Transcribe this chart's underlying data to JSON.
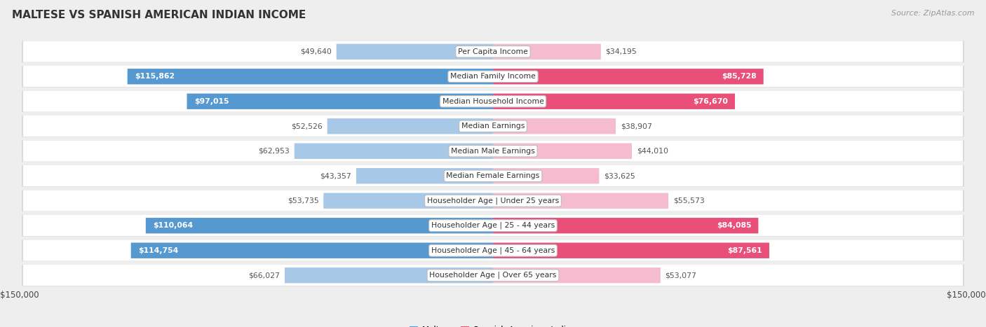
{
  "title": "MALTESE VS SPANISH AMERICAN INDIAN INCOME",
  "source": "Source: ZipAtlas.com",
  "categories": [
    "Per Capita Income",
    "Median Family Income",
    "Median Household Income",
    "Median Earnings",
    "Median Male Earnings",
    "Median Female Earnings",
    "Householder Age | Under 25 years",
    "Householder Age | 25 - 44 years",
    "Householder Age | 45 - 64 years",
    "Householder Age | Over 65 years"
  ],
  "maltese_values": [
    49640,
    115862,
    97015,
    52526,
    62953,
    43357,
    53735,
    110064,
    114754,
    66027
  ],
  "spanish_values": [
    34195,
    85728,
    76670,
    38907,
    44010,
    33625,
    55573,
    84085,
    87561,
    53077
  ],
  "maltese_labels": [
    "$49,640",
    "$115,862",
    "$97,015",
    "$52,526",
    "$62,953",
    "$43,357",
    "$53,735",
    "$110,064",
    "$114,754",
    "$66,027"
  ],
  "spanish_labels": [
    "$34,195",
    "$85,728",
    "$76,670",
    "$38,907",
    "$44,010",
    "$33,625",
    "$55,573",
    "$84,085",
    "$87,561",
    "$53,077"
  ],
  "max_value": 150000,
  "maltese_color_light": "#a8c8e8",
  "maltese_color_dark": "#5599d0",
  "spanish_color_light": "#f5bcd0",
  "spanish_color_dark": "#e8507a",
  "bg_color": "#eeeeee",
  "row_bg": "#ffffff",
  "row_border": "#d0d0d0",
  "inside_label_color_blue": "#ffffff",
  "inside_label_color_pink": "#ffffff",
  "outside_label_color": "#555555",
  "maltese_inside_threshold": 75000,
  "spanish_inside_threshold": 75000,
  "legend_maltese": "Maltese",
  "legend_spanish": "Spanish American Indian",
  "xlabel_left": "$150,000",
  "xlabel_right": "$150,000"
}
